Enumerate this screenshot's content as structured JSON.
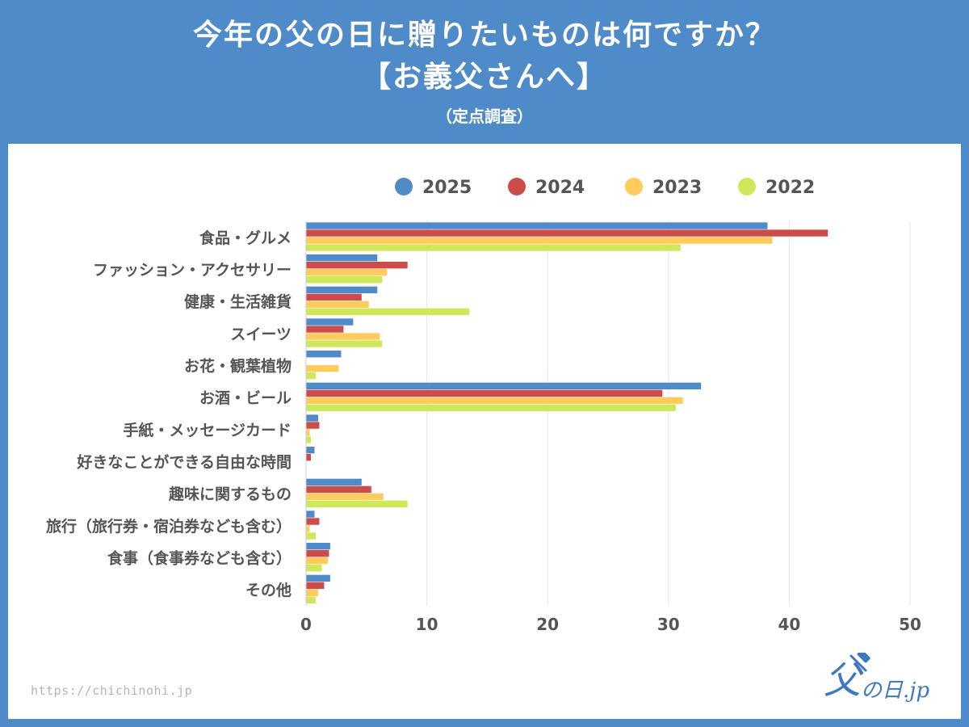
{
  "header": {
    "title_line1": "今年の父の日に贈りたいものは何ですか？",
    "title_line2": "【お義父さんへ】",
    "title_line3": "（定点調査）"
  },
  "footer": {
    "source": "https://chichinohi.jp",
    "logo_text": "の日.jp",
    "logo_mark_char": "父"
  },
  "chart_data": {
    "type": "bar",
    "orientation": "horizontal",
    "title": "今年の父の日に贈りたいものは何ですか？【お義父さんへ】（定点調査）",
    "xlabel": "",
    "ylabel": "",
    "xlim": [
      0,
      50
    ],
    "x_ticks": [
      0,
      10,
      20,
      30,
      40,
      50
    ],
    "grid": true,
    "legend_position": "top",
    "categories": [
      "食品・グルメ",
      "ファッション・アクセサリー",
      "健康・生活雑貨",
      "スイーツ",
      "お花・観葉植物",
      "お酒・ビール",
      "手紙・メッセージカード",
      "好きなことができる自由な時間",
      "趣味に関するもの",
      "旅行（旅行券・宿泊券なども含む）",
      "食事（食事券なども含む）",
      "その他"
    ],
    "series": [
      {
        "name": "2025",
        "color": "#4f8ac9",
        "values": [
          38.2,
          5.9,
          5.9,
          3.9,
          2.9,
          32.7,
          1.0,
          0.7,
          4.6,
          0.7,
          2.0,
          2.0
        ]
      },
      {
        "name": "2024",
        "color": "#cc4b4b",
        "values": [
          43.2,
          8.4,
          4.6,
          3.1,
          0,
          29.5,
          1.1,
          0.4,
          5.4,
          1.1,
          1.9,
          1.5
        ]
      },
      {
        "name": "2023",
        "color": "#ffcb5c",
        "values": [
          38.6,
          6.7,
          5.2,
          6.1,
          2.7,
          31.2,
          0.3,
          0,
          6.4,
          0.3,
          1.8,
          1.0
        ]
      },
      {
        "name": "2022",
        "color": "#cfe85a",
        "values": [
          31.0,
          6.3,
          13.5,
          6.3,
          0.8,
          30.6,
          0.4,
          0,
          8.4,
          0.8,
          1.3,
          0.8
        ]
      }
    ]
  }
}
